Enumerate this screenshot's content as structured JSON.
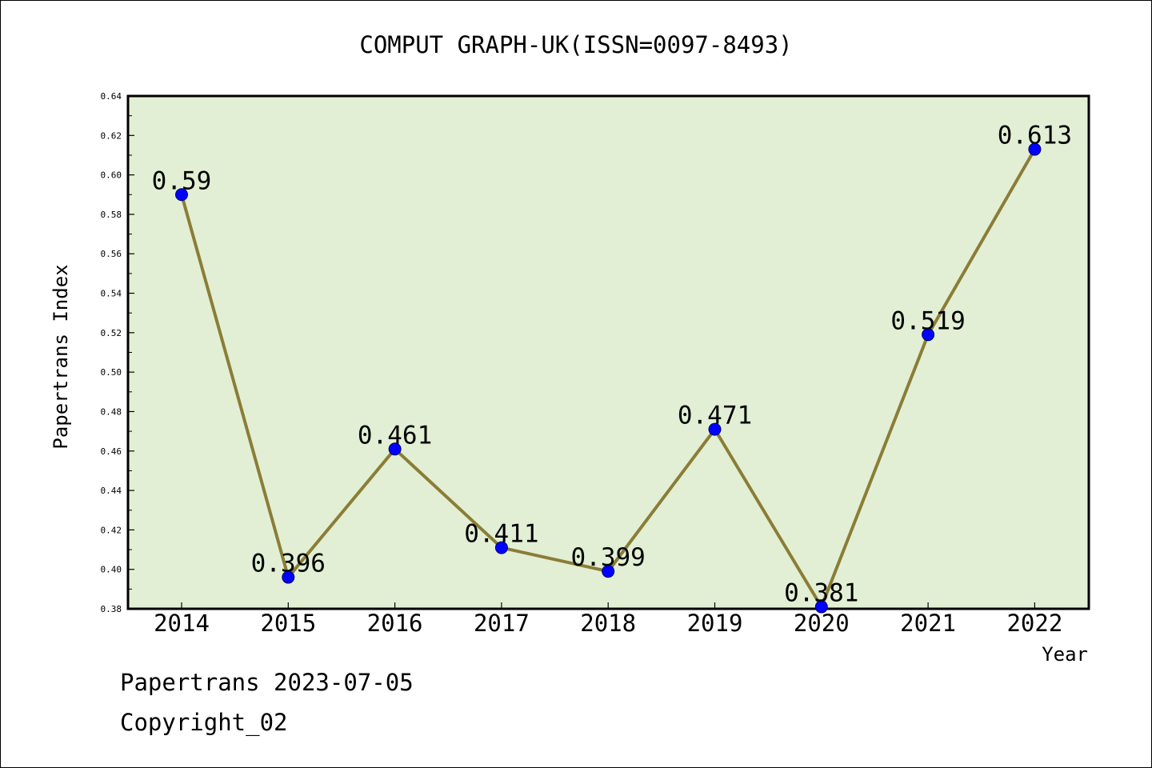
{
  "chart_data": {
    "type": "line",
    "title": "COMPUT GRAPH-UK(ISSN=0097-8493)",
    "xlabel": "Year",
    "ylabel": "Papertrans Index",
    "categories": [
      "2014",
      "2015",
      "2016",
      "2017",
      "2018",
      "2019",
      "2020",
      "2021",
      "2022"
    ],
    "values": [
      0.59,
      0.396,
      0.461,
      0.411,
      0.399,
      0.471,
      0.381,
      0.519,
      0.613
    ],
    "data_labels": [
      "0.59",
      "0.396",
      "0.461",
      "0.411",
      "0.399",
      "0.471",
      "0.381",
      "0.519",
      "0.613"
    ],
    "ylim": [
      0.38,
      0.64
    ],
    "ytick_labels": [
      "0.38",
      "0.40",
      "0.42",
      "0.44",
      "0.46",
      "0.48",
      "0.50",
      "0.52",
      "0.54",
      "0.56",
      "0.58",
      "0.60",
      "0.62",
      "0.64"
    ],
    "grid": false,
    "colors": {
      "plot_background": "#e2efd4",
      "line": "#8b7d37",
      "marker": "#0000ff"
    }
  },
  "footer": {
    "line1": "Papertrans 2023-07-05",
    "line2": "Copyright_02"
  }
}
